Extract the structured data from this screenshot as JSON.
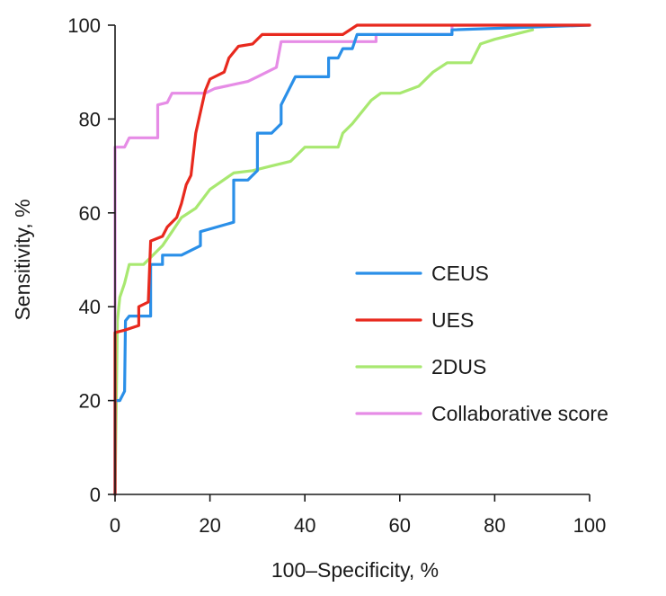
{
  "chart_data": {
    "type": "line",
    "title": "",
    "xlabel": "100–Specificity, %",
    "ylabel": "Sensitivity, %",
    "xlim": [
      0,
      100
    ],
    "ylim": [
      0,
      100
    ],
    "x_ticks": [
      "0",
      "20",
      "40",
      "60",
      "80",
      "100"
    ],
    "y_ticks": [
      "0",
      "20",
      "40",
      "60",
      "80",
      "100"
    ],
    "grid": false,
    "legend_position": "lower-right",
    "series": [
      {
        "name": "CEUS",
        "color": "#2a8fe8",
        "points": [
          [
            0,
            0
          ],
          [
            0,
            20
          ],
          [
            1,
            20
          ],
          [
            2,
            22
          ],
          [
            2.2,
            37
          ],
          [
            3,
            38
          ],
          [
            7.5,
            38
          ],
          [
            7.5,
            49
          ],
          [
            10,
            49
          ],
          [
            10,
            51
          ],
          [
            14,
            51
          ],
          [
            18,
            53
          ],
          [
            18,
            56
          ],
          [
            25,
            58
          ],
          [
            25,
            67
          ],
          [
            28,
            67
          ],
          [
            30,
            69
          ],
          [
            30,
            77
          ],
          [
            33,
            77
          ],
          [
            35,
            79
          ],
          [
            35,
            83
          ],
          [
            38,
            89
          ],
          [
            45,
            89
          ],
          [
            45,
            93
          ],
          [
            47,
            93
          ],
          [
            48,
            95
          ],
          [
            50,
            95
          ],
          [
            51,
            98
          ],
          [
            55,
            98
          ],
          [
            71,
            98
          ],
          [
            71,
            99
          ],
          [
            100,
            100
          ]
        ]
      },
      {
        "name": "UES",
        "color": "#e8291e",
        "points": [
          [
            0,
            0
          ],
          [
            0,
            34.5
          ],
          [
            2,
            35
          ],
          [
            5,
            36
          ],
          [
            5,
            40
          ],
          [
            7,
            41
          ],
          [
            7.5,
            54
          ],
          [
            10,
            55
          ],
          [
            11,
            57
          ],
          [
            13,
            59
          ],
          [
            14,
            62
          ],
          [
            15,
            66
          ],
          [
            16,
            68
          ],
          [
            17,
            77
          ],
          [
            19,
            86
          ],
          [
            20,
            88.5
          ],
          [
            23,
            90
          ],
          [
            24,
            93
          ],
          [
            26,
            95.5
          ],
          [
            29,
            96
          ],
          [
            31,
            98
          ],
          [
            35,
            98
          ],
          [
            48,
            98
          ],
          [
            51,
            100
          ],
          [
            60,
            100
          ],
          [
            71,
            100
          ],
          [
            100,
            100
          ]
        ]
      },
      {
        "name": "2DUS",
        "color": "#a8e870",
        "points": [
          [
            0,
            0
          ],
          [
            0.5,
            37
          ],
          [
            1,
            42
          ],
          [
            2,
            45
          ],
          [
            3,
            49
          ],
          [
            6,
            49
          ],
          [
            7,
            50
          ],
          [
            10,
            53
          ],
          [
            12,
            56
          ],
          [
            14,
            59
          ],
          [
            17,
            61
          ],
          [
            20,
            65
          ],
          [
            25,
            68.5
          ],
          [
            29,
            69
          ],
          [
            33,
            70
          ],
          [
            37,
            71
          ],
          [
            40,
            74
          ],
          [
            47,
            74
          ],
          [
            48,
            77
          ],
          [
            50,
            79
          ],
          [
            54,
            84
          ],
          [
            56,
            85.5
          ],
          [
            60,
            85.5
          ],
          [
            64,
            87
          ],
          [
            67,
            90
          ],
          [
            70,
            92
          ],
          [
            75,
            92
          ],
          [
            77,
            96
          ],
          [
            80,
            97
          ],
          [
            84,
            98
          ],
          [
            88,
            99
          ]
        ]
      },
      {
        "name": "Collaborative score",
        "color": "#e68ce6",
        "points": [
          [
            0,
            0
          ],
          [
            0,
            74
          ],
          [
            2,
            74
          ],
          [
            3,
            76
          ],
          [
            9,
            76
          ],
          [
            9,
            83
          ],
          [
            11,
            83.5
          ],
          [
            12,
            85.5
          ],
          [
            19,
            85.5
          ],
          [
            21,
            86.5
          ],
          [
            28,
            88
          ],
          [
            30,
            89
          ],
          [
            33,
            90.5
          ],
          [
            34,
            91
          ],
          [
            35,
            96.5
          ],
          [
            55,
            96.5
          ],
          [
            55,
            98
          ],
          [
            71,
            98
          ],
          [
            71,
            100
          ],
          [
            100,
            100
          ]
        ]
      }
    ]
  }
}
